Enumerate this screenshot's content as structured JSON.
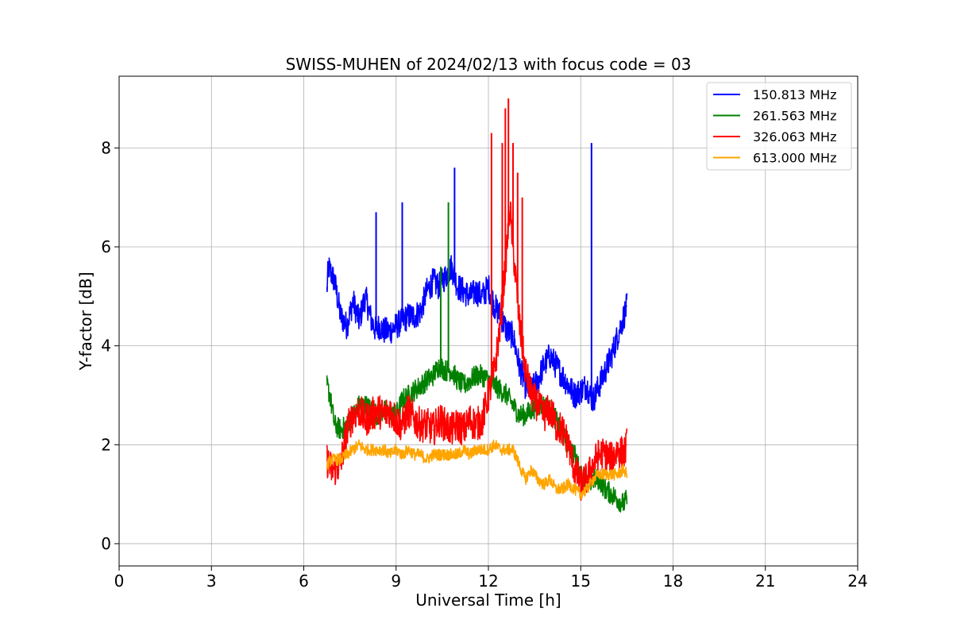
{
  "chart_data": {
    "type": "line",
    "title": "SWISS-MUHEN of 2024/02/13 with focus code = 03",
    "xlabel": "Universal Time [h]",
    "ylabel": "Y-factor [dB]",
    "xlim": [
      0,
      24
    ],
    "ylim": [
      -0.45,
      9.45
    ],
    "xticks": [
      0,
      3,
      6,
      9,
      12,
      15,
      18,
      21,
      24
    ],
    "yticks": [
      0,
      2,
      4,
      6,
      8
    ],
    "grid": true,
    "legend_position": "top-right",
    "series": [
      {
        "name": "150.813 MHz",
        "color": "#0000ff",
        "x": [
          6.75,
          6.8,
          7.0,
          7.2,
          7.4,
          7.6,
          7.8,
          8.0,
          8.2,
          8.35,
          8.45,
          8.6,
          8.8,
          9.0,
          9.2,
          9.4,
          9.6,
          9.8,
          10.0,
          10.2,
          10.4,
          10.6,
          10.8,
          10.9,
          11.0,
          11.2,
          11.4,
          11.6,
          11.8,
          12.0,
          12.2,
          12.4,
          12.6,
          12.8,
          13.0,
          13.2,
          13.4,
          13.6,
          13.8,
          14.0,
          14.2,
          14.4,
          14.6,
          14.8,
          15.0,
          15.2,
          15.3,
          15.4,
          15.6,
          15.8,
          16.0,
          16.2,
          16.4,
          16.5
        ],
        "y": [
          5.1,
          5.6,
          5.3,
          4.6,
          4.4,
          4.9,
          4.5,
          5.0,
          4.5,
          4.3,
          4.4,
          4.3,
          4.3,
          4.4,
          4.5,
          4.6,
          4.6,
          4.7,
          5.1,
          5.3,
          5.2,
          5.4,
          5.6,
          5.4,
          5.2,
          5.1,
          5.0,
          5.1,
          5.0,
          5.2,
          4.8,
          4.6,
          4.3,
          4.2,
          3.6,
          3.2,
          3.1,
          3.3,
          3.6,
          3.8,
          3.6,
          3.4,
          3.2,
          3.0,
          3.1,
          3.2,
          3.0,
          2.9,
          3.2,
          3.5,
          3.8,
          4.2,
          4.6,
          4.8
        ]
      },
      {
        "name": "261.563 MHz",
        "color": "#008000",
        "x": [
          6.75,
          6.85,
          7.0,
          7.2,
          7.4,
          7.6,
          7.8,
          8.0,
          8.2,
          8.4,
          8.6,
          8.8,
          9.0,
          9.2,
          9.4,
          9.6,
          9.8,
          10.0,
          10.2,
          10.4,
          10.6,
          10.8,
          11.0,
          11.2,
          11.4,
          11.6,
          11.8,
          12.0,
          12.2,
          12.4,
          12.6,
          12.8,
          13.0,
          13.2,
          13.4,
          13.6,
          13.8,
          14.0,
          14.2,
          14.4,
          14.6,
          14.8,
          15.0,
          15.2,
          15.4,
          15.6,
          15.8,
          16.0,
          16.2,
          16.4,
          16.5
        ],
        "y": [
          3.2,
          3.0,
          2.4,
          2.3,
          2.4,
          2.6,
          2.8,
          2.8,
          2.7,
          2.6,
          2.7,
          2.6,
          2.6,
          2.9,
          3.0,
          3.1,
          3.2,
          3.3,
          3.4,
          3.6,
          3.5,
          3.5,
          3.3,
          3.2,
          3.3,
          3.4,
          3.4,
          3.3,
          3.2,
          3.1,
          3.0,
          2.8,
          2.6,
          2.6,
          2.7,
          2.8,
          2.8,
          2.7,
          2.5,
          2.2,
          2.0,
          1.8,
          1.4,
          1.2,
          1.3,
          1.3,
          1.1,
          1.0,
          0.9,
          0.8,
          0.9
        ]
      },
      {
        "name": "326.063 MHz",
        "color": "#ff0000",
        "x": [
          6.75,
          6.9,
          7.0,
          7.2,
          7.4,
          7.6,
          7.8,
          8.0,
          8.2,
          8.4,
          8.6,
          8.8,
          9.0,
          9.2,
          9.4,
          9.6,
          9.8,
          10.0,
          10.2,
          10.4,
          10.6,
          10.8,
          11.0,
          11.2,
          11.4,
          11.6,
          11.8,
          12.0,
          12.2,
          12.4,
          12.6,
          12.7,
          12.8,
          13.0,
          13.2,
          13.4,
          13.6,
          13.8,
          14.0,
          14.2,
          14.4,
          14.6,
          14.8,
          15.0,
          15.2,
          15.4,
          15.6,
          15.8,
          16.0,
          16.2,
          16.4,
          16.5
        ],
        "y": [
          1.7,
          1.5,
          1.5,
          1.6,
          2.3,
          2.6,
          2.7,
          2.5,
          2.6,
          2.7,
          2.6,
          2.7,
          2.5,
          2.4,
          2.7,
          2.5,
          2.4,
          2.4,
          2.3,
          2.5,
          2.4,
          2.3,
          2.4,
          2.3,
          2.5,
          2.4,
          2.5,
          3.0,
          3.5,
          4.5,
          6.0,
          6.8,
          6.0,
          4.5,
          3.5,
          3.0,
          2.8,
          2.6,
          2.7,
          2.4,
          2.3,
          2.0,
          1.5,
          1.2,
          1.3,
          1.6,
          1.8,
          1.8,
          1.7,
          1.9,
          1.8,
          2.0
        ]
      },
      {
        "name": "613.000 MHz",
        "color": "#ffa500",
        "x": [
          6.75,
          6.9,
          7.0,
          7.2,
          7.4,
          7.6,
          7.8,
          8.0,
          8.2,
          8.4,
          8.6,
          8.8,
          9.0,
          9.2,
          9.4,
          9.6,
          9.8,
          10.0,
          10.2,
          10.4,
          10.6,
          10.8,
          11.0,
          11.2,
          11.4,
          11.6,
          11.8,
          12.0,
          12.2,
          12.4,
          12.6,
          12.8,
          13.0,
          13.2,
          13.4,
          13.6,
          13.8,
          14.0,
          14.2,
          14.4,
          14.6,
          14.8,
          15.0,
          15.2,
          15.4,
          15.6,
          15.8,
          16.0,
          16.2,
          16.4,
          16.5
        ],
        "y": [
          1.6,
          1.7,
          1.7,
          1.7,
          1.8,
          1.9,
          2.0,
          1.9,
          1.9,
          1.9,
          1.9,
          1.8,
          1.9,
          1.8,
          1.9,
          1.8,
          1.8,
          1.7,
          1.8,
          1.8,
          1.8,
          1.8,
          1.8,
          1.9,
          1.8,
          1.9,
          1.9,
          1.9,
          2.0,
          1.9,
          1.9,
          1.9,
          1.6,
          1.3,
          1.5,
          1.3,
          1.2,
          1.3,
          1.1,
          1.1,
          1.2,
          1.1,
          1.0,
          1.1,
          1.3,
          1.4,
          1.4,
          1.4,
          1.4,
          1.5,
          1.4
        ]
      }
    ],
    "annotations": []
  },
  "spikes": [
    {
      "series": 0,
      "x": [
        8.35,
        9.2,
        10.9,
        15.35
      ],
      "y": [
        6.7,
        6.9,
        7.6,
        8.1
      ]
    },
    {
      "series": 1,
      "x": [
        10.7,
        10.45
      ],
      "y": [
        6.9,
        5.6
      ]
    },
    {
      "series": 2,
      "x": [
        12.1,
        12.45,
        12.55,
        12.65,
        12.8,
        12.95,
        13.1
      ],
      "y": [
        8.3,
        8.1,
        8.8,
        9.0,
        8.1,
        7.5,
        7.0
      ]
    }
  ]
}
